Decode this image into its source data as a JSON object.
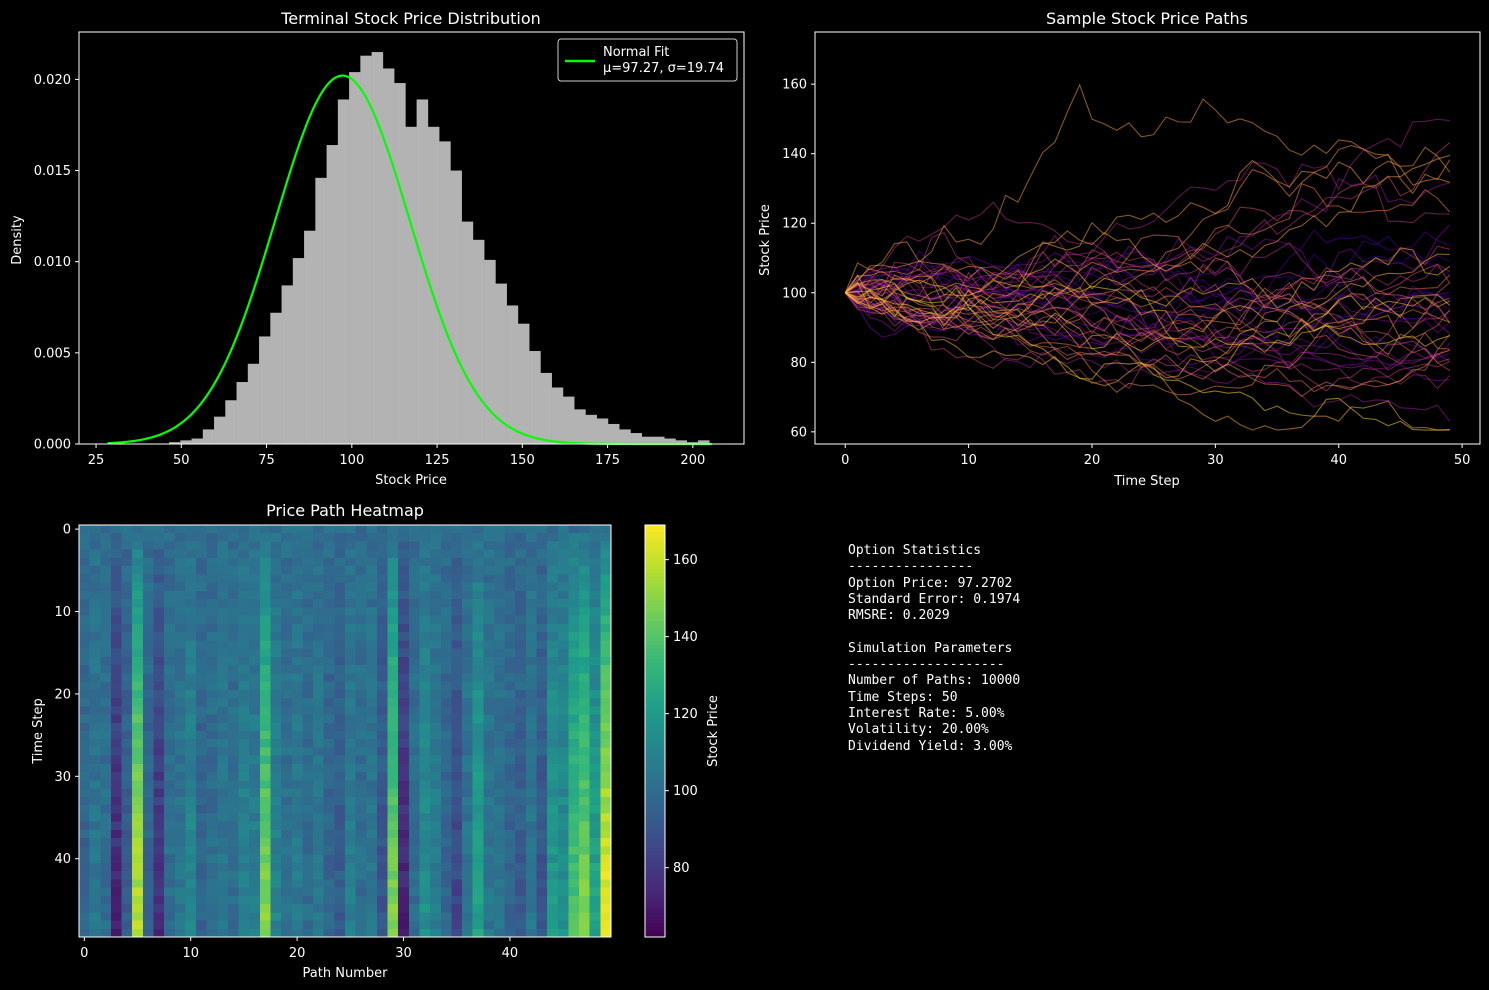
{
  "chart_data": [
    {
      "type": "bar",
      "title": "Terminal Stock Price Distribution",
      "xlabel": "Stock Price",
      "ylabel": "Density",
      "xlim": [
        20,
        215
      ],
      "ylim": [
        0,
        0.0226
      ],
      "xticks": [
        25,
        50,
        75,
        100,
        125,
        150,
        175,
        200
      ],
      "xtick_labels": [
        "25",
        "50",
        "75",
        "100",
        "125",
        "150",
        "175",
        "200"
      ],
      "yticks": [
        0,
        0.005,
        0.01,
        0.015,
        0.02
      ],
      "ytick_labels": [
        "0.000",
        "0.005",
        "0.010",
        "0.015",
        "0.020"
      ],
      "legend_position": "top-right",
      "bin_width": 3.3,
      "bins_start": 46.4,
      "values": [
        0.0001,
        0.0002,
        0.0003,
        0.0008,
        0.0015,
        0.0024,
        0.0034,
        0.0044,
        0.0059,
        0.0072,
        0.0087,
        0.0102,
        0.0117,
        0.0146,
        0.0164,
        0.0189,
        0.0204,
        0.0213,
        0.0215,
        0.0206,
        0.0198,
        0.0174,
        0.0189,
        0.0174,
        0.0166,
        0.015,
        0.0122,
        0.0112,
        0.0101,
        0.0088,
        0.0076,
        0.0066,
        0.0051,
        0.0039,
        0.0031,
        0.0026,
        0.0019,
        0.0016,
        0.0014,
        0.0011,
        0.0008,
        0.0006,
        0.0004,
        0.0004,
        0.0003,
        0.0002,
        0.0001,
        0.0002
      ],
      "bar_color": "#b3b3b3",
      "series": [
        {
          "name": "Normal Fit",
          "label": "μ=97.27, σ=19.74",
          "mu": 97.27,
          "sigma": 19.74,
          "x_range": [
            28.4,
            205.5
          ],
          "color": "#00ff00"
        }
      ]
    },
    {
      "type": "line",
      "title": "Sample Stock Price Paths",
      "xlabel": "Time Step",
      "ylabel": "Stock Price",
      "xlim": [
        -2.45,
        51.45
      ],
      "ylim": [
        56.5,
        175
      ],
      "xticks": [
        0,
        10,
        20,
        30,
        40,
        50
      ],
      "xtick_labels": [
        "0",
        "10",
        "20",
        "30",
        "40",
        "50"
      ],
      "yticks": [
        60,
        80,
        100,
        120,
        140,
        160
      ],
      "ytick_labels": [
        "60",
        "80",
        "100",
        "120",
        "140",
        "160"
      ],
      "num_paths": 50,
      "steps": 50,
      "start_value": 100,
      "colormap": "plasma"
    },
    {
      "type": "heatmap",
      "title": "Price Path Heatmap",
      "xlabel": "Path Number",
      "ylabel": "Time Step",
      "xticks": [
        0,
        10,
        20,
        30,
        40
      ],
      "xtick_labels": [
        "0",
        "10",
        "20",
        "30",
        "40"
      ],
      "yticks": [
        0,
        10,
        20,
        30,
        40
      ],
      "ytick_labels": [
        "0",
        "10",
        "20",
        "30",
        "40"
      ],
      "rows": 50,
      "cols": 50,
      "colormap": "viridis",
      "colorbar_label": "Stock Price",
      "colorbar_range": [
        62,
        169
      ],
      "colorbar_ticks": [
        80,
        100,
        120,
        140,
        160
      ],
      "colorbar_tick_labels": [
        "80",
        "100",
        "120",
        "140",
        "160"
      ],
      "final_values": [
        96,
        104,
        100,
        72,
        92,
        160,
        96,
        76,
        100,
        104,
        112,
        96,
        100,
        104,
        100,
        110,
        108,
        150,
        110,
        102,
        106,
        100,
        104,
        96,
        92,
        108,
        100,
        104,
        88,
        150,
        72,
        100,
        116,
        108,
        96,
        84,
        104,
        124,
        104,
        102,
        96,
        92,
        104,
        90,
        120,
        116,
        140,
        150,
        124,
        169
      ]
    }
  ],
  "stats": {
    "lines": [
      "Option Statistics",
      "----------------",
      "Option Price: 97.2702",
      "Standard Error: 0.1974",
      "RMSRE: 0.2029",
      "",
      "Simulation Parameters",
      "--------------------",
      "Number of Paths: 10000",
      "Time Steps: 50",
      "Interest Rate: 5.00%",
      "Volatility: 20.00%",
      "Dividend Yield: 3.00%"
    ]
  }
}
